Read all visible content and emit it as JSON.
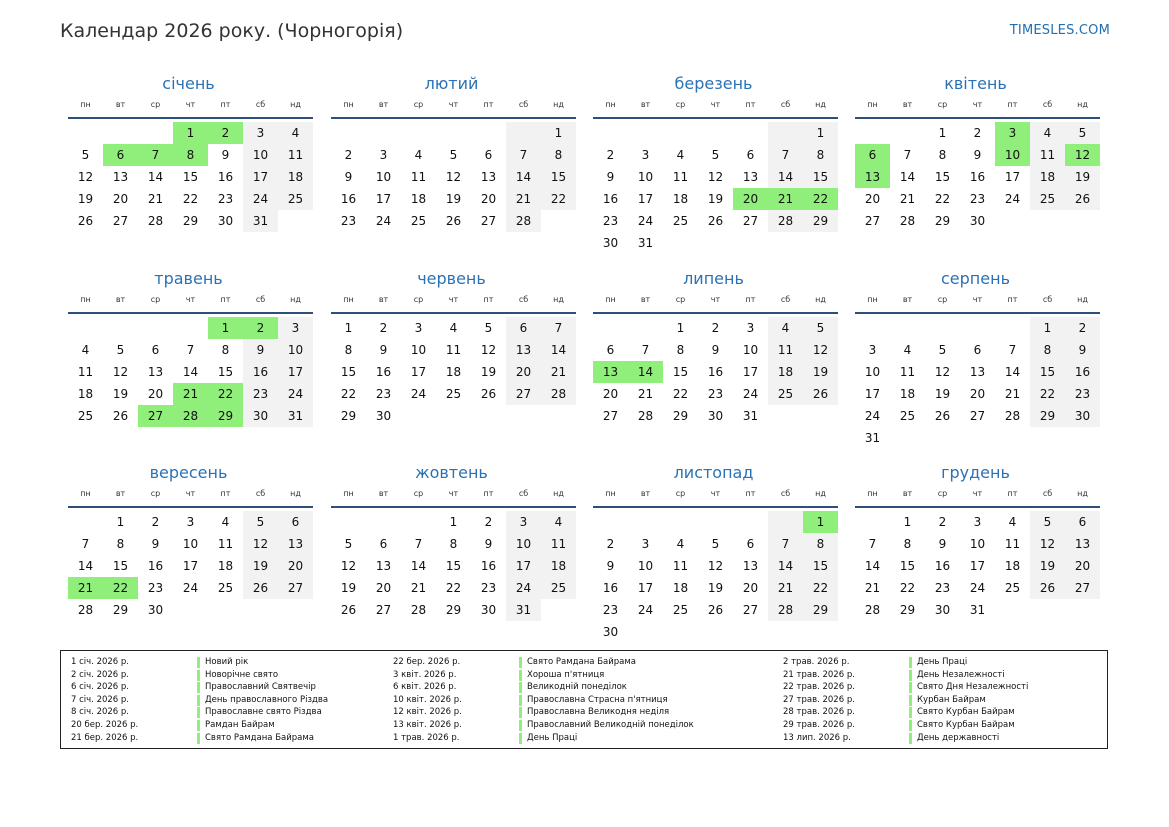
{
  "title": "Календар 2026 року. (Чорногорія)",
  "brand": "TIMESLES.COM",
  "colors": {
    "accent": "#2a72b5",
    "holiday": "#90ee7a",
    "weekend": "#f2f2f2",
    "rule": "#2d4f7c"
  },
  "weekdays": [
    "пн",
    "вт",
    "ср",
    "чт",
    "пт",
    "сб",
    "нд"
  ],
  "months": [
    {
      "name": "січень",
      "offset": 3,
      "days": 31,
      "holidays": [
        1,
        2,
        6,
        7,
        8
      ]
    },
    {
      "name": "лютий",
      "offset": 6,
      "days": 28,
      "holidays": []
    },
    {
      "name": "березень",
      "offset": 6,
      "days": 31,
      "holidays": [
        20,
        21,
        22
      ]
    },
    {
      "name": "квітень",
      "offset": 2,
      "days": 30,
      "holidays": [
        3,
        6,
        10,
        12,
        13
      ]
    },
    {
      "name": "травень",
      "offset": 4,
      "days": 31,
      "holidays": [
        1,
        2,
        21,
        22,
        27,
        28,
        29
      ]
    },
    {
      "name": "червень",
      "offset": 0,
      "days": 30,
      "holidays": []
    },
    {
      "name": "липень",
      "offset": 2,
      "days": 31,
      "holidays": [
        13,
        14
      ]
    },
    {
      "name": "серпень",
      "offset": 5,
      "days": 31,
      "holidays": []
    },
    {
      "name": "вересень",
      "offset": 1,
      "days": 30,
      "holidays": [
        21,
        22
      ]
    },
    {
      "name": "жовтень",
      "offset": 3,
      "days": 31,
      "holidays": []
    },
    {
      "name": "листопад",
      "offset": 6,
      "days": 30,
      "holidays": [
        1
      ]
    },
    {
      "name": "грудень",
      "offset": 1,
      "days": 31,
      "holidays": []
    }
  ],
  "legend": [
    [
      {
        "date": "1 січ. 2026 р.",
        "name": "Новий рік"
      },
      {
        "date": "2 січ. 2026 р.",
        "name": "Новорічне свято"
      },
      {
        "date": "6 січ. 2026 р.",
        "name": "Православний Святвечір"
      },
      {
        "date": "7 січ. 2026 р.",
        "name": "День православного Різдва"
      },
      {
        "date": "8 січ. 2026 р.",
        "name": "Православне свято Різдва"
      },
      {
        "date": "20 бер. 2026 р.",
        "name": "Рамдан Байрам"
      },
      {
        "date": "21 бер. 2026 р.",
        "name": "Свято Рамдана Байрама"
      }
    ],
    [
      {
        "date": "22 бер. 2026 р.",
        "name": "Свято Рамдана Байрама"
      },
      {
        "date": "3 квіт. 2026 р.",
        "name": "Хороша п'ятниця"
      },
      {
        "date": "6 квіт. 2026 р.",
        "name": "Великодній понеділок"
      },
      {
        "date": "10 квіт. 2026 р.",
        "name": "Православна Страсна п'ятниця"
      },
      {
        "date": "12 квіт. 2026 р.",
        "name": "Православна Великодня неділя"
      },
      {
        "date": "13 квіт. 2026 р.",
        "name": "Православний Великодній понеділок"
      },
      {
        "date": "1 трав. 2026 р.",
        "name": "День Праці"
      }
    ],
    [
      {
        "date": "2 трав. 2026 р.",
        "name": "День Праці"
      },
      {
        "date": "21 трав. 2026 р.",
        "name": "День Незалежності"
      },
      {
        "date": "22 трав. 2026 р.",
        "name": "Свято Дня Незалежності"
      },
      {
        "date": "27 трав. 2026 р.",
        "name": "Курбан Байрам"
      },
      {
        "date": "28 трав. 2026 р.",
        "name": "Свято Курбан Байрам"
      },
      {
        "date": "29 трав. 2026 р.",
        "name": "Свято Курбан Байрам"
      },
      {
        "date": "13 лип. 2026 р.",
        "name": "День державності"
      }
    ]
  ]
}
